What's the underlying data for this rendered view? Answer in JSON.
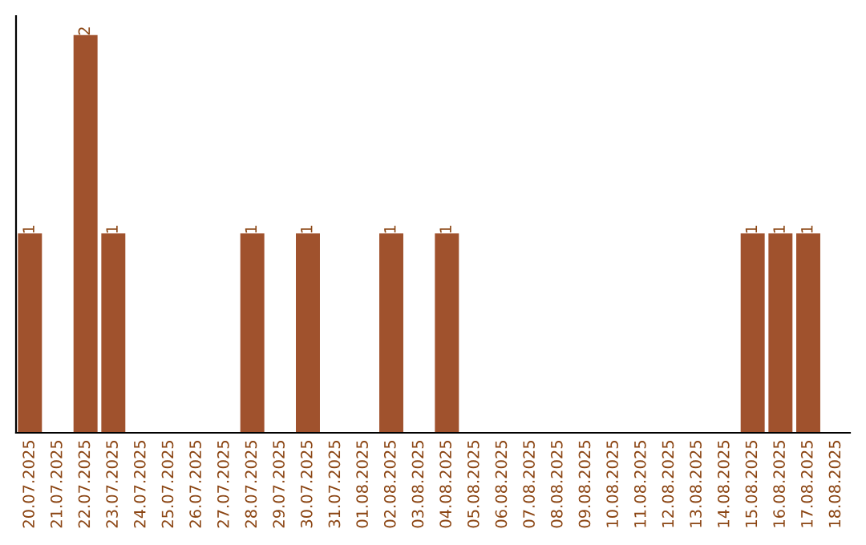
{
  "chart_data": {
    "type": "bar",
    "categories": [
      "20.07.2025",
      "21.07.2025",
      "22.07.2025",
      "23.07.2025",
      "24.07.2025",
      "25.07.2025",
      "26.07.2025",
      "27.07.2025",
      "28.07.2025",
      "29.07.2025",
      "30.07.2025",
      "31.07.2025",
      "01.08.2025",
      "02.08.2025",
      "03.08.2025",
      "04.08.2025",
      "05.08.2025",
      "06.08.2025",
      "07.08.2025",
      "08.08.2025",
      "09.08.2025",
      "10.08.2025",
      "11.08.2025",
      "12.08.2025",
      "13.08.2025",
      "14.08.2025",
      "15.08.2025",
      "16.08.2025",
      "17.08.2025",
      "18.08.2025"
    ],
    "values": [
      1,
      0,
      2,
      1,
      0,
      0,
      0,
      0,
      1,
      0,
      1,
      0,
      0,
      1,
      0,
      1,
      0,
      0,
      0,
      0,
      0,
      0,
      0,
      0,
      0,
      0,
      1,
      1,
      1,
      0
    ],
    "value_labels": [
      "1",
      null,
      "2",
      "1",
      null,
      null,
      null,
      null,
      "1",
      null,
      "1",
      null,
      null,
      "1",
      null,
      "1",
      null,
      null,
      null,
      null,
      null,
      null,
      null,
      null,
      null,
      null,
      "1",
      "1",
      "1",
      null
    ],
    "color": "#a0522d",
    "grid": false,
    "legend": false,
    "tick_labels": "x"
  }
}
